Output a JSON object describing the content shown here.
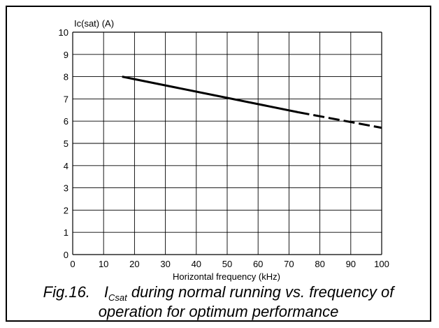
{
  "chart_data": {
    "type": "line",
    "ylabel": "Ic(sat) (A)",
    "xlabel": "Horizontal frequency (kHz)",
    "xlim": [
      0,
      100
    ],
    "ylim": [
      0,
      10
    ],
    "x_ticks": [
      "0",
      "10",
      "20",
      "30",
      "40",
      "50",
      "60",
      "70",
      "80",
      "90",
      "100"
    ],
    "y_ticks": [
      "0",
      "1",
      "2",
      "3",
      "4",
      "5",
      "6",
      "7",
      "8",
      "9",
      "10"
    ],
    "grid": true,
    "series": [
      {
        "style": "solid",
        "x": [
          16,
          73
        ],
        "y": [
          8.0,
          6.4
        ]
      },
      {
        "style": "dashed",
        "x": [
          73,
          100
        ],
        "y": [
          6.4,
          5.7
        ]
      }
    ]
  },
  "caption": {
    "fig_number": "Fig.16.",
    "symbol_main": "I",
    "symbol_sub": "Csat",
    "text_line1": " during normal running vs. frequency of",
    "text_line2": "operation for optimum performance"
  }
}
